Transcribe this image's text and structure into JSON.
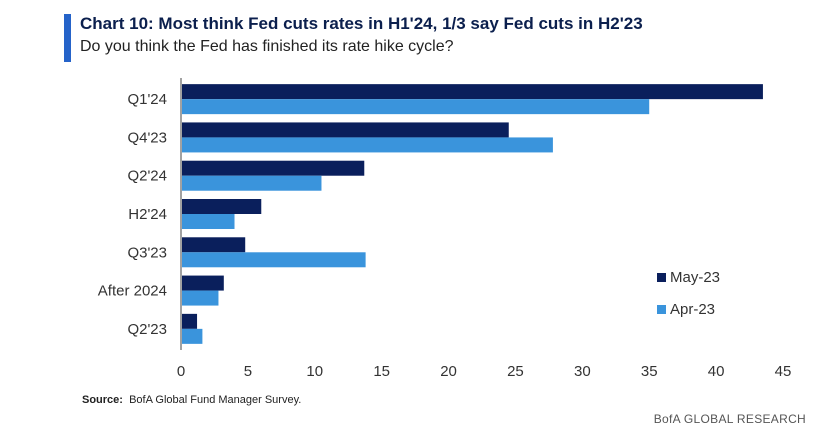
{
  "header": {
    "title": "Chart 10: Most think Fed cuts rates in H1'24, 1/3 say Fed cuts in H2'23",
    "subtitle": "Do you think the Fed has finished its rate hike cycle?"
  },
  "footer": {
    "source_label": "Source:",
    "source_text": "BofA Global Fund Manager Survey.",
    "brand": "BofA GLOBAL RESEARCH"
  },
  "colors": {
    "May-23": "#0a1f5c",
    "Apr-23": "#3a94dc",
    "accent": "#2563c9"
  },
  "chart_data": {
    "type": "bar",
    "orientation": "horizontal",
    "title": "Chart 10: Most think Fed cuts rates in H1'24, 1/3 say Fed cuts in H2'23",
    "subtitle": "Do you think the Fed has finished its rate hike cycle?",
    "categories": [
      "Q1'24",
      "Q4'23",
      "Q2'24",
      "H2'24",
      "Q3'23",
      "After 2024",
      "Q2'23"
    ],
    "series": [
      {
        "name": "May-23",
        "values": [
          43.5,
          24.5,
          13.7,
          6.0,
          4.8,
          3.2,
          1.2
        ]
      },
      {
        "name": "Apr-23",
        "values": [
          35.0,
          27.8,
          10.5,
          4.0,
          13.8,
          2.8,
          1.6
        ]
      }
    ],
    "xlim": [
      0,
      45
    ],
    "xticks": [
      0,
      5,
      10,
      15,
      20,
      25,
      30,
      35,
      40,
      45
    ],
    "grid": false,
    "legend_position": "bottom-right"
  }
}
